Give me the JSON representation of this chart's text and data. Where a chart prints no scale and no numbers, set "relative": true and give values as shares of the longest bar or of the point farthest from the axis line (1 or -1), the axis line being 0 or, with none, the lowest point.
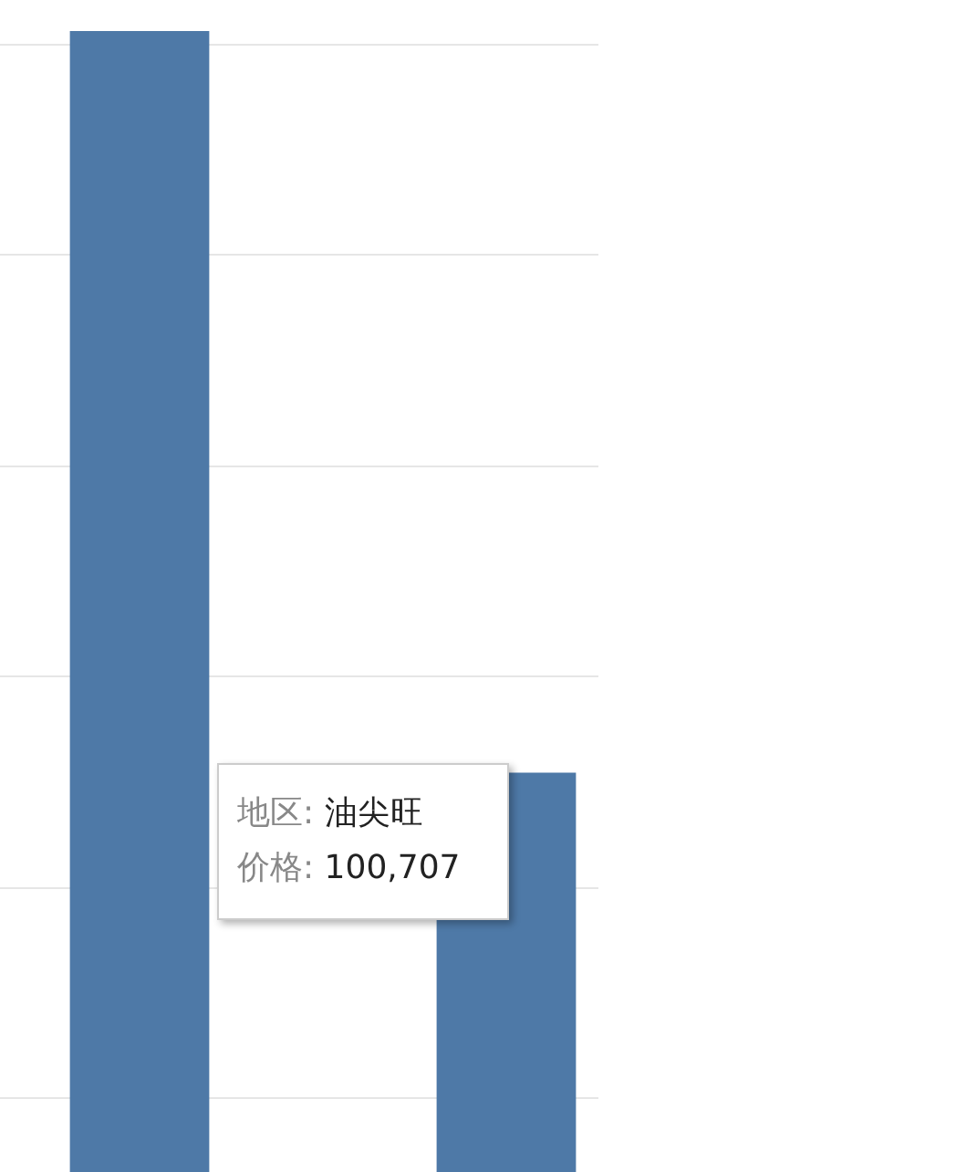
{
  "chart_data": {
    "type": "bar",
    "relative": true,
    "categories": [
      null,
      null
    ],
    "values": [
      1,
      0.35
    ],
    "color": "#4e79a7",
    "grid": true,
    "annotations": [
      "地区: 油尖旺",
      "价格: 100,707"
    ]
  }
}
